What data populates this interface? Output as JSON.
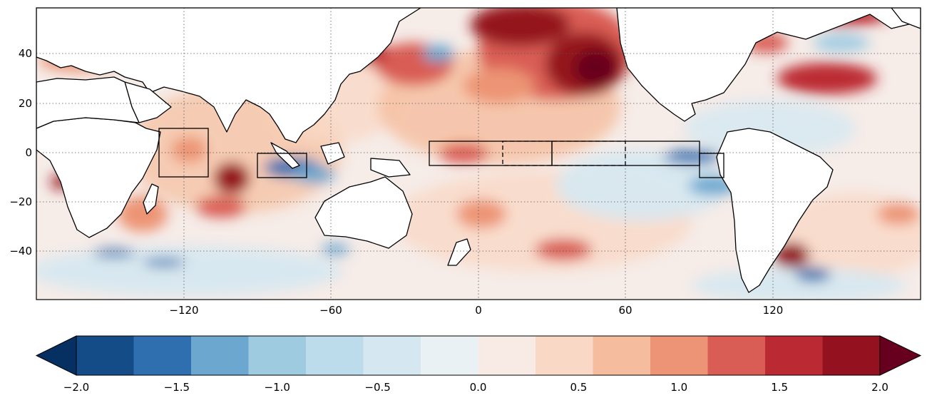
{
  "map": {
    "lat_ticks": [
      "40",
      "20",
      "0",
      "−20",
      "−40"
    ],
    "lon_ticks": [
      "−120",
      "−60",
      "0",
      "60",
      "120"
    ],
    "gridlines": "dotted",
    "colors": {
      "land": "#ffffff",
      "coast": "#000000"
    }
  },
  "colorbar": {
    "labels": [
      "−2.0",
      "−1.5",
      "−1.0",
      "−0.5",
      "0.0",
      "0.5",
      "1.0",
      "1.5",
      "2.0"
    ],
    "range": [
      -2.0,
      2.0
    ],
    "extend": "both",
    "colors": [
      "#053061",
      "#134c87",
      "#2f6fb0",
      "#6ca7cf",
      "#9fcbe1",
      "#bcdceb",
      "#d5e8f1",
      "#eaf1f4",
      "#f8ebe5",
      "#f9d8c6",
      "#f5bd9d",
      "#ec9475",
      "#d95d54",
      "#bb2a33",
      "#94121f",
      "#67001f"
    ]
  }
}
